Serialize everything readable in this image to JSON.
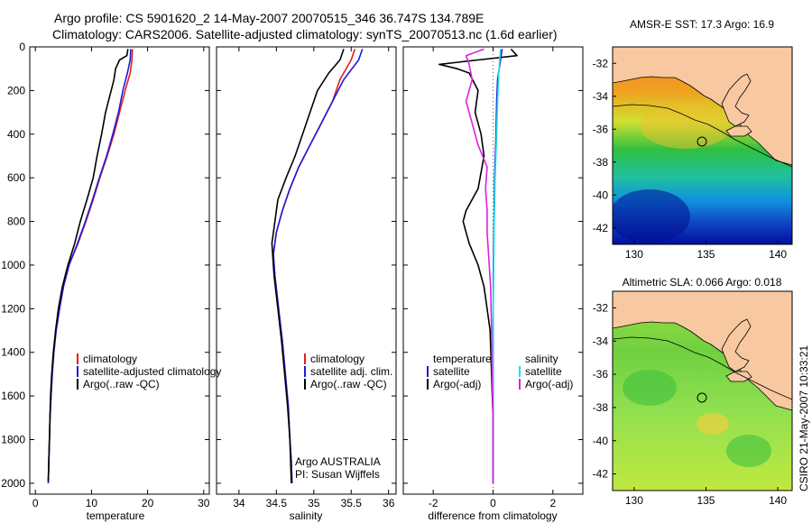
{
  "header": {
    "line1": "Argo profile: CS 5901620_2 14-May-2007 20070515_346 36.747S 134.789E",
    "line2": "Climatology: CARS2006. Satellite-adjusted climatology: synTS_20070513.nc (1.6d earlier)"
  },
  "side_text": "CSIRO 21-May-2007 10:33:21",
  "colors": {
    "red": "#e0201c",
    "blue": "#1c1cd8",
    "black": "#000000",
    "cyan": "#20e0e8",
    "magenta": "#e020e0",
    "land": "#f8c8a0"
  },
  "chart_data": [
    {
      "type": "line",
      "xlabel": "temperature",
      "xlim": [
        -1,
        31
      ],
      "ylim": [
        2050,
        0
      ],
      "xticks": [
        0,
        10,
        20,
        30
      ],
      "yticks": [
        0,
        200,
        400,
        600,
        800,
        1000,
        1200,
        1400,
        1600,
        1800,
        2000
      ],
      "series": [
        {
          "name": "climatology",
          "color": "#e0201c",
          "points": [
            [
              17.3,
              10
            ],
            [
              17.2,
              60
            ],
            [
              16.9,
              120
            ],
            [
              16.0,
              200
            ],
            [
              15.0,
              300
            ],
            [
              14.0,
              400
            ],
            [
              12.8,
              500
            ],
            [
              11.5,
              600
            ],
            [
              10.3,
              700
            ],
            [
              9.0,
              800
            ],
            [
              7.6,
              900
            ],
            [
              6.0,
              1000
            ],
            [
              5.0,
              1100
            ],
            [
              4.3,
              1200
            ],
            [
              3.7,
              1300
            ],
            [
              3.3,
              1400
            ],
            [
              3.0,
              1500
            ],
            [
              2.8,
              1600
            ],
            [
              2.6,
              1700
            ],
            [
              2.5,
              1800
            ],
            [
              2.4,
              1900
            ],
            [
              2.3,
              2000
            ]
          ]
        },
        {
          "name": "satellite-adjusted climatology",
          "color": "#1c1cd8",
          "points": [
            [
              17.0,
              10
            ],
            [
              16.9,
              60
            ],
            [
              16.4,
              120
            ],
            [
              15.6,
              200
            ],
            [
              14.8,
              300
            ],
            [
              13.8,
              400
            ],
            [
              12.7,
              500
            ],
            [
              11.4,
              600
            ],
            [
              10.2,
              700
            ],
            [
              8.9,
              800
            ],
            [
              7.5,
              900
            ],
            [
              6.0,
              1000
            ],
            [
              5.0,
              1100
            ],
            [
              4.3,
              1200
            ],
            [
              3.7,
              1300
            ],
            [
              3.3,
              1400
            ],
            [
              3.0,
              1500
            ],
            [
              2.8,
              1600
            ],
            [
              2.6,
              1700
            ],
            [
              2.5,
              1800
            ],
            [
              2.4,
              1900
            ],
            [
              2.3,
              2000
            ]
          ]
        },
        {
          "name": "Argo(..raw -QC)",
          "color": "#000000",
          "points": [
            [
              16.5,
              10
            ],
            [
              16.3,
              40
            ],
            [
              15.0,
              60
            ],
            [
              14.3,
              100
            ],
            [
              14.0,
              150
            ],
            [
              13.5,
              200
            ],
            [
              12.5,
              300
            ],
            [
              11.8,
              400
            ],
            [
              11.0,
              500
            ],
            [
              10.3,
              600
            ],
            [
              9.2,
              700
            ],
            [
              8.0,
              800
            ],
            [
              7.0,
              900
            ],
            [
              5.8,
              1000
            ],
            [
              4.8,
              1100
            ],
            [
              4.1,
              1200
            ],
            [
              3.6,
              1300
            ],
            [
              3.2,
              1400
            ],
            [
              2.9,
              1500
            ],
            [
              2.7,
              1600
            ],
            [
              2.6,
              1700
            ],
            [
              2.5,
              1800
            ],
            [
              2.4,
              1900
            ],
            [
              2.3,
              1990
            ]
          ]
        }
      ],
      "legend": [
        "climatology",
        "satellite-adjusted climatology",
        "Argo(..raw -QC)"
      ]
    },
    {
      "type": "line",
      "xlabel": "salinity",
      "xlim": [
        33.7,
        36.1
      ],
      "ylim": [
        2050,
        0
      ],
      "xticks": [
        34,
        34.5,
        35,
        35.5,
        36
      ],
      "series": [
        {
          "name": "climatology",
          "color": "#e0201c",
          "points": [
            [
              35.55,
              10
            ],
            [
              35.5,
              60
            ],
            [
              35.35,
              150
            ],
            [
              35.25,
              250
            ],
            [
              35.1,
              350
            ],
            [
              34.95,
              450
            ],
            [
              34.8,
              550
            ],
            [
              34.68,
              650
            ],
            [
              34.58,
              750
            ],
            [
              34.5,
              850
            ],
            [
              34.46,
              950
            ],
            [
              34.48,
              1050
            ],
            [
              34.53,
              1200
            ],
            [
              34.58,
              1350
            ],
            [
              34.62,
              1500
            ],
            [
              34.66,
              1650
            ],
            [
              34.68,
              1800
            ],
            [
              34.7,
              1900
            ],
            [
              34.71,
              2000
            ]
          ]
        },
        {
          "name": "satellite adj. clim.",
          "color": "#1c1cd8",
          "points": [
            [
              35.65,
              10
            ],
            [
              35.6,
              60
            ],
            [
              35.4,
              150
            ],
            [
              35.25,
              250
            ],
            [
              35.1,
              350
            ],
            [
              34.95,
              450
            ],
            [
              34.8,
              550
            ],
            [
              34.68,
              650
            ],
            [
              34.58,
              750
            ],
            [
              34.5,
              850
            ],
            [
              34.46,
              950
            ],
            [
              34.48,
              1050
            ],
            [
              34.53,
              1200
            ],
            [
              34.58,
              1350
            ],
            [
              34.62,
              1500
            ],
            [
              34.66,
              1650
            ],
            [
              34.68,
              1800
            ],
            [
              34.7,
              1900
            ],
            [
              34.71,
              2000
            ]
          ]
        },
        {
          "name": "Argo(..raw -QC)",
          "color": "#000000",
          "points": [
            [
              35.4,
              10
            ],
            [
              35.35,
              60
            ],
            [
              35.2,
              120
            ],
            [
              35.05,
              200
            ],
            [
              34.95,
              300
            ],
            [
              34.85,
              400
            ],
            [
              34.75,
              500
            ],
            [
              34.63,
              600
            ],
            [
              34.52,
              700
            ],
            [
              34.48,
              800
            ],
            [
              34.44,
              900
            ],
            [
              34.45,
              950
            ],
            [
              34.47,
              1050
            ],
            [
              34.52,
              1200
            ],
            [
              34.57,
              1350
            ],
            [
              34.61,
              1500
            ],
            [
              34.65,
              1650
            ],
            [
              34.68,
              1800
            ],
            [
              34.69,
              1900
            ],
            [
              34.7,
              2000
            ]
          ]
        }
      ],
      "legend": [
        "climatology",
        "satellite adj. clim.",
        "Argo(..raw -QC)"
      ],
      "annotation": [
        "Argo AUSTRALIA",
        "PI: Susan Wijffels"
      ]
    },
    {
      "type": "line",
      "xlabel": "difference from climatology",
      "xlim": [
        -3,
        3
      ],
      "ylim": [
        2050,
        0
      ],
      "xticks": [
        -2,
        0,
        2
      ],
      "series": [
        {
          "name": "temperature satellite",
          "color": "#1c1cd8",
          "points": [
            [
              0.3,
              10
            ],
            [
              0.25,
              60
            ],
            [
              0.15,
              150
            ],
            [
              0.12,
              250
            ],
            [
              0.1,
              400
            ],
            [
              0.05,
              600
            ],
            [
              0.03,
              800
            ],
            [
              0.01,
              1000
            ],
            [
              0.0,
              1500
            ],
            [
              0.0,
              2000
            ]
          ]
        },
        {
          "name": "temperature Argo(-adj)",
          "color": "#000000",
          "points": [
            [
              0.6,
              10
            ],
            [
              0.8,
              40
            ],
            [
              -0.5,
              60
            ],
            [
              -1.8,
              80
            ],
            [
              -1.2,
              100
            ],
            [
              -0.8,
              120
            ],
            [
              -0.5,
              200
            ],
            [
              -0.6,
              300
            ],
            [
              -0.4,
              400
            ],
            [
              -0.3,
              500
            ],
            [
              -0.5,
              650
            ],
            [
              -0.9,
              750
            ],
            [
              -1.0,
              800
            ],
            [
              -0.9,
              850
            ],
            [
              -0.8,
              900
            ],
            [
              -0.5,
              1000
            ],
            [
              -0.3,
              1100
            ],
            [
              -0.2,
              1200
            ],
            [
              -0.1,
              1300
            ],
            [
              -0.05,
              1500
            ],
            [
              0.0,
              1700
            ],
            [
              0.0,
              2000
            ]
          ]
        },
        {
          "name": "salinity satellite",
          "color": "#20e0e8",
          "points": [
            [
              0.25,
              10
            ],
            [
              0.2,
              100
            ],
            [
              0.15,
              250
            ],
            [
              0.12,
              400
            ],
            [
              0.07,
              600
            ],
            [
              0.04,
              800
            ],
            [
              0.02,
              1000
            ],
            [
              0.0,
              1300
            ],
            [
              0.0,
              1700
            ],
            [
              0.0,
              2000
            ]
          ]
        },
        {
          "name": "salinity Argo(-adj)",
          "color": "#e020e0",
          "points": [
            [
              -0.3,
              10
            ],
            [
              -0.9,
              40
            ],
            [
              -0.8,
              80
            ],
            [
              -0.7,
              150
            ],
            [
              -0.9,
              250
            ],
            [
              -0.7,
              350
            ],
            [
              -0.5,
              450
            ],
            [
              -0.2,
              550
            ],
            [
              -0.25,
              650
            ],
            [
              -0.2,
              750
            ],
            [
              -0.2,
              850
            ],
            [
              -0.15,
              950
            ],
            [
              -0.08,
              1100
            ],
            [
              -0.05,
              1300
            ],
            [
              -0.03,
              1500
            ],
            [
              0.0,
              1700
            ],
            [
              0.0,
              2000
            ]
          ]
        }
      ],
      "legend_left": [
        "temperature",
        "satellite",
        "Argo(-adj)"
      ],
      "legend_right": [
        "salinity",
        "satellite",
        "Argo(-adj)"
      ]
    },
    {
      "type": "heatmap",
      "title": "AMSR-E SST: 17.3 Argo: 16.9",
      "xlim": [
        128.5,
        141
      ],
      "ylim": [
        -43,
        -31
      ],
      "xticks": [
        130,
        135,
        140
      ],
      "yticks": [
        -32,
        -34,
        -36,
        -38,
        -40,
        -42
      ],
      "marker": {
        "lon": 134.789,
        "lat": -36.747
      }
    },
    {
      "type": "heatmap",
      "title": "Altimetric SLA: 0.066 Argo: 0.018",
      "xlim": [
        128.5,
        141
      ],
      "ylim": [
        -43,
        -31
      ],
      "xticks": [
        130,
        135,
        140
      ],
      "yticks": [
        -32,
        -34,
        -36,
        -38,
        -40,
        -42
      ],
      "marker": {
        "lon": 134.789,
        "lat": -36.747
      }
    }
  ]
}
